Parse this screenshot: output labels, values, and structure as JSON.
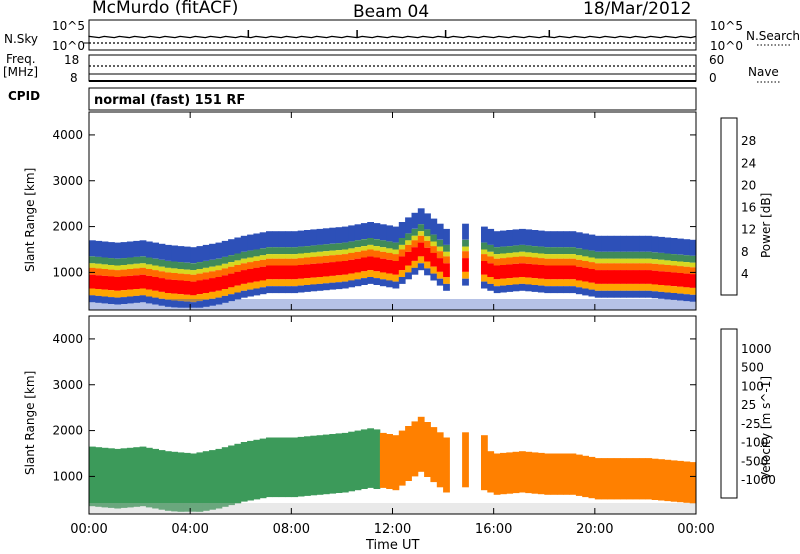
{
  "header": {
    "station": "McMurdo (fitACF)",
    "beam": "Beam 04",
    "date": "18/Mar/2012"
  },
  "top_strip": {
    "nsky_label": "N.Sky",
    "nsky_ticks": [
      "10^5",
      "10^0"
    ],
    "nsearch_label": "N.Search",
    "nsearch_ticks": [
      "10^5",
      "10^0"
    ],
    "freq_label_1": "Freq.",
    "freq_label_2": "[MHz]",
    "freq_ticks": [
      "18",
      "8"
    ],
    "nave_label": "Nave",
    "nave_ticks": [
      "60",
      "0"
    ],
    "cpid_label": "CPID",
    "cpid_value": "normal (fast) 151 RF"
  },
  "panels": {
    "power": {
      "ylabel": "Slant Range [km]",
      "yticks": [
        "4000",
        "3000",
        "2000",
        "1000"
      ],
      "cbar_label": "Power [dB]",
      "cbar_ticks": [
        "28",
        "24",
        "20",
        "16",
        "12",
        "8",
        "4"
      ],
      "colors": [
        "#1a2bd9",
        "#2d50b8",
        "#3f8a5a",
        "#55c040",
        "#d8d820",
        "#ffa500",
        "#ff6a00",
        "#ff0000"
      ]
    },
    "velocity": {
      "ylabel": "Slant Range [km]",
      "yticks": [
        "4000",
        "3000",
        "2000",
        "1000"
      ],
      "cbar_label": "Velocity [m s^-1]",
      "cbar_ticks": [
        "1000",
        "500",
        "100",
        "25",
        "-25",
        "-100",
        "-500",
        "-1000"
      ],
      "colors": [
        "#1a3cbf",
        "#3f78c0",
        "#3c9a5a",
        "#5ccc3c",
        "#c0c0c0",
        "#ffb000",
        "#ff8000",
        "#ff4000",
        "#ff0000"
      ]
    }
  },
  "xaxis": {
    "ticks": [
      "00:00",
      "04:00",
      "08:00",
      "12:00",
      "16:00",
      "20:00",
      "00:00"
    ],
    "label": "Time UT"
  },
  "chart_data": {
    "type": "heatmap",
    "title": "McMurdo (fitACF) Beam 04 18/Mar/2012",
    "xlabel": "Time UT",
    "ylabel": "Slant Range [km]",
    "x_range_hours": [
      0,
      24
    ],
    "ylim": [
      180,
      4500
    ],
    "panels": [
      {
        "name": "Power",
        "units": "dB",
        "scale": [
          0,
          30
        ],
        "band_hours": [
          0,
          1,
          2,
          3,
          4,
          5,
          6,
          7,
          8,
          9,
          10,
          11,
          12,
          13,
          14,
          15,
          16,
          17,
          18,
          19,
          20,
          21,
          22,
          23,
          24
        ],
        "band_center_km": [
          1000,
          950,
          1000,
          900,
          850,
          950,
          1100,
          1200,
          1200,
          1250,
          1300,
          1400,
          1300,
          1700,
          1250,
          1400,
          1200,
          1250,
          1200,
          1200,
          1100,
          1100,
          1100,
          1050,
          1000
        ],
        "peak_db": [
          28,
          28,
          28,
          28,
          28,
          28,
          28,
          26,
          28,
          28,
          28,
          28,
          28,
          24,
          24,
          16,
          28,
          28,
          28,
          28,
          28,
          28,
          28,
          28,
          28
        ]
      },
      {
        "name": "Velocity",
        "units": "m s^-1",
        "scale": [
          -1000,
          1000
        ],
        "band_hours": [
          0,
          2,
          4,
          6,
          8,
          10,
          12,
          14,
          16,
          18,
          20,
          22,
          24
        ],
        "velocity_ms": [
          100,
          100,
          100,
          100,
          100,
          200,
          50,
          -100,
          -150,
          -150,
          -150,
          -150,
          -150
        ]
      }
    ]
  }
}
